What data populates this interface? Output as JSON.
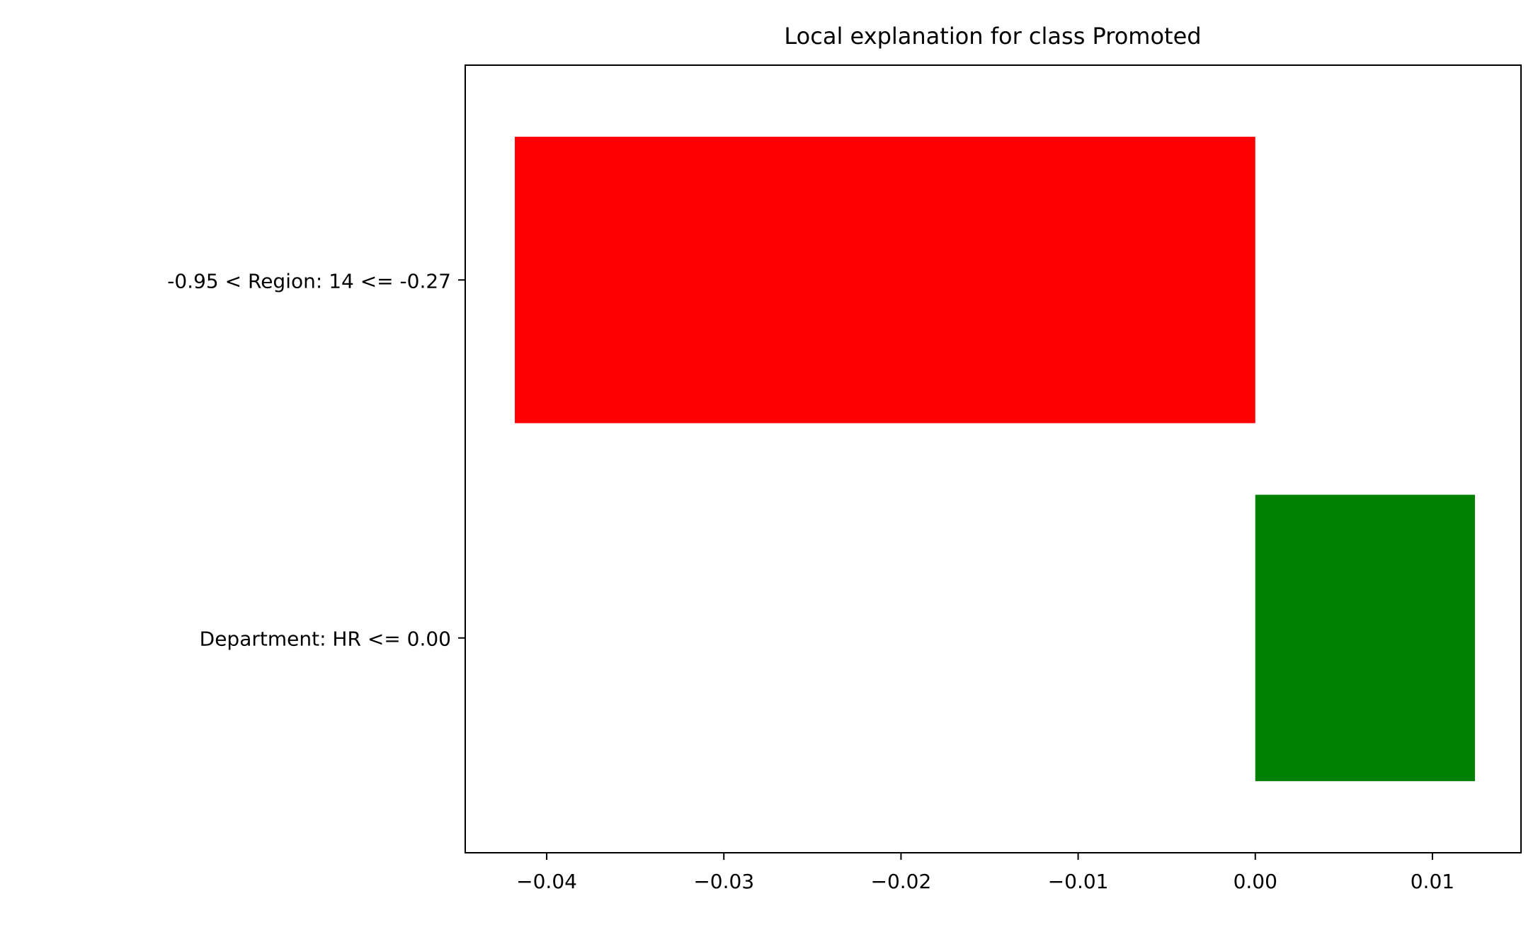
{
  "chart_data": {
    "type": "bar",
    "orientation": "horizontal",
    "title": "Local explanation for class Promoted",
    "xlabel": "",
    "ylabel": "",
    "categories": [
      "-0.95 < Region: 14 <= -0.27",
      "Department: HR <= 0.00"
    ],
    "values": [
      -0.0418,
      0.0124
    ],
    "colors": [
      "#ff0000",
      "#008000"
    ],
    "xlim": [
      -0.0446,
      0.015
    ],
    "xticks": [
      -0.04,
      -0.03,
      -0.02,
      -0.01,
      0.0,
      0.01
    ],
    "xtick_labels": [
      "−0.04",
      "−0.03",
      "−0.02",
      "−0.01",
      "0.00",
      "0.01"
    ],
    "grid": false,
    "legend": "none"
  }
}
